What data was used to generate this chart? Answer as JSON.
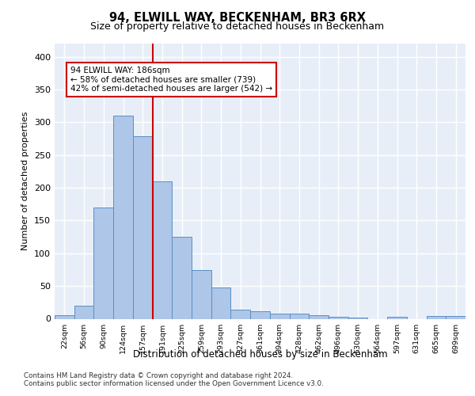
{
  "title1": "94, ELWILL WAY, BECKENHAM, BR3 6RX",
  "title2": "Size of property relative to detached houses in Beckenham",
  "xlabel": "Distribution of detached houses by size in Beckenham",
  "ylabel": "Number of detached properties",
  "bin_labels": [
    "22sqm",
    "56sqm",
    "90sqm",
    "124sqm",
    "157sqm",
    "191sqm",
    "225sqm",
    "259sqm",
    "293sqm",
    "327sqm",
    "361sqm",
    "394sqm",
    "428sqm",
    "462sqm",
    "496sqm",
    "530sqm",
    "564sqm",
    "597sqm",
    "631sqm",
    "665sqm",
    "699sqm"
  ],
  "bar_heights": [
    6,
    20,
    170,
    310,
    278,
    210,
    125,
    74,
    48,
    14,
    12,
    8,
    8,
    5,
    3,
    2,
    0,
    3,
    0,
    4,
    4
  ],
  "bar_color": "#aec6e8",
  "bar_edge_color": "#5a8fc2",
  "vline_x": 5,
  "vline_color": "#cc0000",
  "annotation_text": "94 ELWILL WAY: 186sqm\n← 58% of detached houses are smaller (739)\n42% of semi-detached houses are larger (542) →",
  "annotation_box_color": "#ffffff",
  "annotation_box_edge": "#cc0000",
  "ylim": [
    0,
    420
  ],
  "yticks": [
    0,
    50,
    100,
    150,
    200,
    250,
    300,
    350,
    400
  ],
  "background_color": "#e8eef8",
  "grid_color": "#ffffff",
  "footer1": "Contains HM Land Registry data © Crown copyright and database right 2024.",
  "footer2": "Contains public sector information licensed under the Open Government Licence v3.0."
}
